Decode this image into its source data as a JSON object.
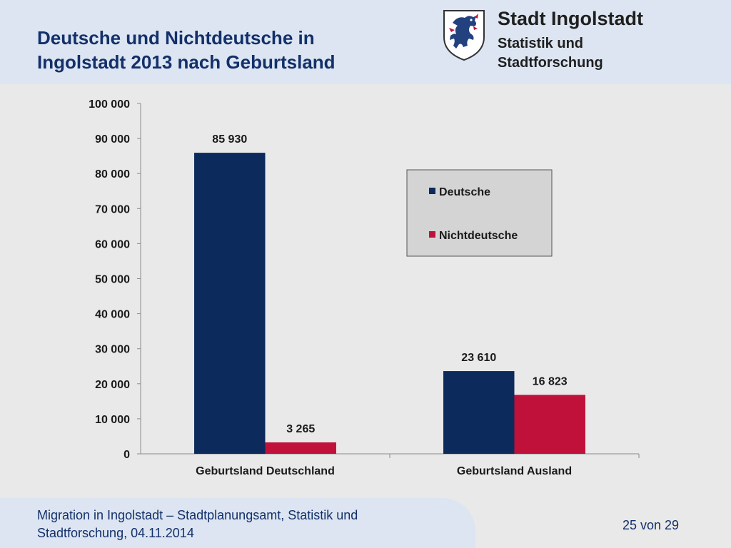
{
  "header": {
    "title_line1": "Deutsche und Nichtdeutsche in",
    "title_line2": "Ingolstadt 2013 nach Geburtsland",
    "org_name": "Stadt Ingolstadt",
    "org_sub_line1": "Statistik und",
    "org_sub_line2": "Stadtforschung",
    "crest_icon": "panther-crest-icon"
  },
  "chart_data": {
    "type": "bar",
    "categories": [
      "Geburtsland Deutschland",
      "Geburtsland Ausland"
    ],
    "series": [
      {
        "name": "Deutsche",
        "values": [
          85930,
          23610
        ],
        "labels": [
          "85 930",
          "23 610"
        ],
        "color": "#0d2a5c"
      },
      {
        "name": "Nichtdeutsche",
        "values": [
          3265,
          16823
        ],
        "labels": [
          "3 265",
          "16 823"
        ],
        "color": "#c0113a"
      }
    ],
    "ylim": [
      0,
      100000
    ],
    "yticks": [
      0,
      10000,
      20000,
      30000,
      40000,
      50000,
      60000,
      70000,
      80000,
      90000,
      100000
    ],
    "ytick_labels": [
      "0",
      "10 000",
      "20 000",
      "30 000",
      "40 000",
      "50 000",
      "60 000",
      "70 000",
      "80 000",
      "90 000",
      "100 000"
    ],
    "grid": false,
    "legend_position": "right"
  },
  "footer": {
    "line1": "Migration in Ingolstadt – Stadtplanungsamt, Statistik und",
    "line2": "Stadtforschung, 04.11.2014",
    "page": "25 von 29"
  }
}
